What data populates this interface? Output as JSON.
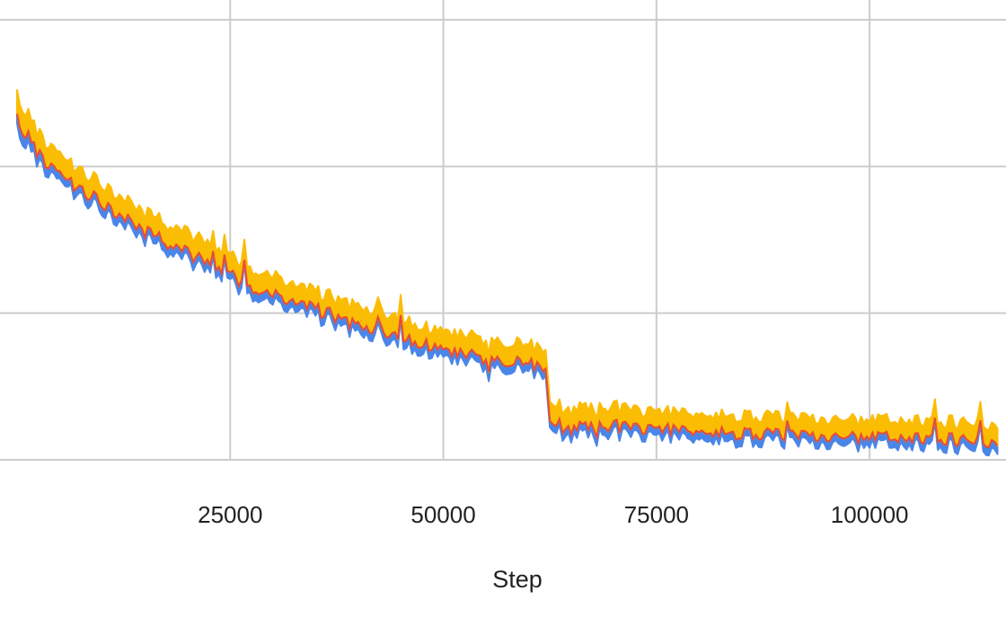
{
  "chart_data": {
    "type": "area",
    "title": "",
    "xlabel": "Step",
    "ylabel": "",
    "xlim": [
      -2000,
      116000
    ],
    "ylim": [
      0,
      3
    ],
    "grid": true,
    "x_ticks": [
      25000,
      50000,
      75000,
      100000
    ],
    "x_tick_labels": [
      "25000",
      "50000",
      "75000",
      "100000"
    ],
    "y_gridlines": [
      0,
      1,
      2,
      3
    ],
    "colors": {
      "lower_band": "#4a86e8",
      "mean_line": "#e84a3a",
      "upper_band": "#fbbc04",
      "grid": "#cccccc"
    },
    "series": [
      {
        "role": "lower",
        "x": [
          0,
          3000,
          6000,
          9000,
          12000,
          15000,
          18000,
          21000,
          24000,
          27000,
          30000,
          33000,
          36000,
          39000,
          42000,
          45000,
          48000,
          51000,
          54000,
          57000,
          60000,
          62000,
          62500,
          64000,
          67000,
          70000,
          73000,
          76000,
          79000,
          82000,
          85000,
          88000,
          91000,
          94000,
          97000,
          100000,
          103000,
          106000,
          109000,
          112000,
          115000
        ],
        "y": [
          2.25,
          1.98,
          1.84,
          1.74,
          1.62,
          1.52,
          1.42,
          1.33,
          1.24,
          1.14,
          1.08,
          1.02,
          0.95,
          0.88,
          0.84,
          0.79,
          0.74,
          0.68,
          0.64,
          0.62,
          0.6,
          0.58,
          0.18,
          0.16,
          0.17,
          0.18,
          0.17,
          0.16,
          0.15,
          0.14,
          0.13,
          0.12,
          0.12,
          0.11,
          0.11,
          0.1,
          0.1,
          0.09,
          0.09,
          0.08,
          0.08
        ]
      },
      {
        "role": "mean",
        "x": [
          0,
          3000,
          6000,
          9000,
          12000,
          15000,
          18000,
          21000,
          24000,
          27000,
          30000,
          33000,
          36000,
          39000,
          42000,
          45000,
          48000,
          51000,
          54000,
          57000,
          60000,
          62000,
          62500,
          64000,
          67000,
          70000,
          73000,
          76000,
          79000,
          82000,
          85000,
          88000,
          91000,
          94000,
          97000,
          100000,
          103000,
          106000,
          109000,
          112000,
          115000
        ],
        "y": [
          2.32,
          2.04,
          1.89,
          1.79,
          1.67,
          1.57,
          1.47,
          1.38,
          1.29,
          1.19,
          1.13,
          1.07,
          1.0,
          0.93,
          0.89,
          0.84,
          0.79,
          0.73,
          0.69,
          0.67,
          0.65,
          0.63,
          0.23,
          0.21,
          0.22,
          0.23,
          0.22,
          0.21,
          0.2,
          0.19,
          0.18,
          0.17,
          0.17,
          0.16,
          0.16,
          0.15,
          0.15,
          0.14,
          0.14,
          0.13,
          0.13
        ]
      },
      {
        "role": "upper",
        "x": [
          0,
          3000,
          6000,
          9000,
          12000,
          15000,
          18000,
          21000,
          24000,
          27000,
          30000,
          33000,
          36000,
          39000,
          42000,
          45000,
          48000,
          51000,
          54000,
          57000,
          60000,
          62000,
          62500,
          64000,
          67000,
          70000,
          73000,
          76000,
          79000,
          82000,
          85000,
          88000,
          91000,
          94000,
          97000,
          100000,
          103000,
          106000,
          109000,
          112000,
          115000
        ],
        "y": [
          2.48,
          2.18,
          2.02,
          1.92,
          1.8,
          1.7,
          1.6,
          1.52,
          1.42,
          1.32,
          1.26,
          1.19,
          1.12,
          1.06,
          1.02,
          0.97,
          0.91,
          0.86,
          0.82,
          0.8,
          0.78,
          0.76,
          0.36,
          0.34,
          0.35,
          0.36,
          0.34,
          0.33,
          0.32,
          0.31,
          0.3,
          0.29,
          0.29,
          0.28,
          0.28,
          0.27,
          0.27,
          0.26,
          0.26,
          0.25,
          0.25
        ]
      }
    ]
  }
}
